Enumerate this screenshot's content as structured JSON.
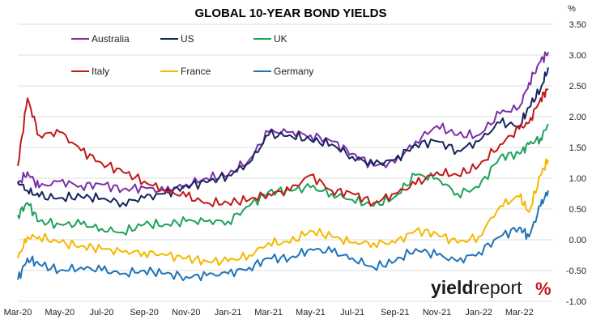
{
  "chart_data": {
    "type": "line",
    "title": "GLOBAL 10-YEAR BOND YIELDS",
    "y_unit": "%",
    "ylim": [
      -1.0,
      3.5
    ],
    "y_ticks": [
      "3.50",
      "3.00",
      "2.50",
      "2.00",
      "1.50",
      "1.00",
      "0.50",
      "0.00",
      "-0.50",
      "-1.00"
    ],
    "y_tick_values": [
      3.5,
      3.0,
      2.5,
      2.0,
      1.5,
      1.0,
      0.5,
      0.0,
      -0.5,
      -1.0
    ],
    "x_ticks": [
      "Mar-20",
      "May-20",
      "Jul-20",
      "Sep-20",
      "Nov-20",
      "Jan-21",
      "Mar-21",
      "May-21",
      "Jul-21",
      "Sep-21",
      "Nov-21",
      "Jan-22",
      "Mar-22"
    ],
    "x_tick_dates": [
      "2020-03-01",
      "2020-05-01",
      "2020-07-01",
      "2020-09-01",
      "2020-11-01",
      "2021-01-01",
      "2021-03-01",
      "2021-05-01",
      "2021-07-01",
      "2021-09-01",
      "2021-11-01",
      "2022-01-01",
      "2022-03-01"
    ],
    "grid": true,
    "legend": "top-left",
    "x": [
      "2020-03-01",
      "2020-03-15",
      "2020-04-01",
      "2020-05-01",
      "2020-06-01",
      "2020-07-01",
      "2020-08-01",
      "2020-09-01",
      "2020-10-01",
      "2020-11-01",
      "2020-12-01",
      "2021-01-01",
      "2021-02-01",
      "2021-03-01",
      "2021-04-01",
      "2021-05-01",
      "2021-06-01",
      "2021-07-01",
      "2021-08-01",
      "2021-09-01",
      "2021-10-01",
      "2021-11-01",
      "2021-12-01",
      "2022-01-01",
      "2022-02-01",
      "2022-03-01",
      "2022-03-15",
      "2022-04-01",
      "2022-04-12"
    ],
    "series": [
      {
        "name": "Australia",
        "color": "#7a30a8",
        "values": [
          0.9,
          1.1,
          0.85,
          0.95,
          0.88,
          0.9,
          0.82,
          0.85,
          0.78,
          0.9,
          1.0,
          1.05,
          1.3,
          1.75,
          1.75,
          1.7,
          1.6,
          1.4,
          1.2,
          1.25,
          1.6,
          1.85,
          1.7,
          1.7,
          2.05,
          2.15,
          2.55,
          2.9,
          3.05
        ]
      },
      {
        "name": "US",
        "color": "#17245e",
        "values": [
          0.95,
          0.8,
          0.7,
          0.68,
          0.7,
          0.67,
          0.6,
          0.68,
          0.75,
          0.88,
          0.93,
          1.05,
          1.25,
          1.7,
          1.7,
          1.62,
          1.55,
          1.35,
          1.22,
          1.3,
          1.55,
          1.6,
          1.45,
          1.6,
          1.9,
          1.85,
          2.15,
          2.45,
          2.8
        ]
      },
      {
        "name": "UK",
        "color": "#1ea15b",
        "values": [
          0.4,
          0.6,
          0.3,
          0.25,
          0.25,
          0.18,
          0.12,
          0.25,
          0.25,
          0.3,
          0.3,
          0.3,
          0.55,
          0.78,
          0.8,
          0.85,
          0.75,
          0.65,
          0.55,
          0.7,
          1.05,
          1.0,
          0.75,
          0.85,
          1.35,
          1.4,
          1.55,
          1.65,
          1.88
        ]
      },
      {
        "name": "Italy",
        "color": "#c01a1a",
        "values": [
          1.2,
          2.3,
          1.7,
          1.75,
          1.45,
          1.25,
          1.1,
          0.95,
          0.8,
          0.7,
          0.6,
          0.6,
          0.65,
          0.75,
          0.8,
          1.05,
          0.8,
          0.75,
          0.6,
          0.75,
          0.9,
          1.1,
          1.05,
          1.2,
          1.55,
          1.8,
          1.9,
          2.3,
          2.45
        ]
      },
      {
        "name": "France",
        "color": "#f5b800",
        "values": [
          -0.3,
          0.05,
          0.05,
          -0.05,
          -0.1,
          -0.15,
          -0.2,
          -0.2,
          -0.25,
          -0.3,
          -0.35,
          -0.35,
          -0.25,
          -0.05,
          -0.05,
          0.15,
          0.05,
          -0.05,
          -0.05,
          -0.05,
          0.15,
          0.1,
          -0.05,
          0.05,
          0.55,
          0.7,
          0.45,
          1.05,
          1.3
        ]
      },
      {
        "name": "Germany",
        "color": "#1f74b8",
        "values": [
          -0.65,
          -0.3,
          -0.4,
          -0.5,
          -0.45,
          -0.5,
          -0.55,
          -0.5,
          -0.55,
          -0.6,
          -0.58,
          -0.55,
          -0.45,
          -0.3,
          -0.3,
          -0.15,
          -0.2,
          -0.3,
          -0.45,
          -0.35,
          -0.15,
          -0.25,
          -0.35,
          -0.2,
          0.05,
          0.2,
          0.05,
          0.55,
          0.8
        ]
      }
    ]
  },
  "logo": {
    "text_bold": "yield",
    "text_light": "report",
    "symbol": "%"
  }
}
